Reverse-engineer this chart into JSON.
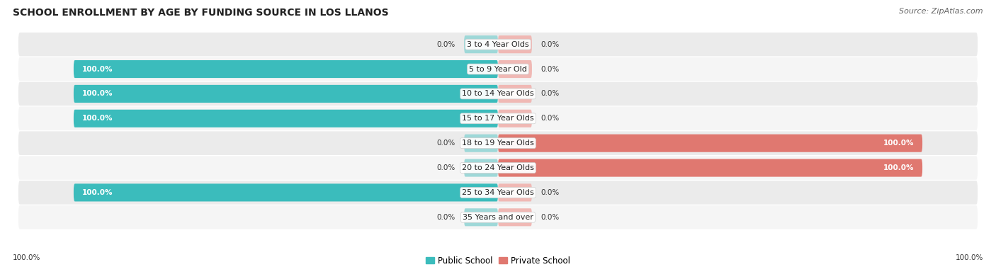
{
  "title": "SCHOOL ENROLLMENT BY AGE BY FUNDING SOURCE IN LOS LLANOS",
  "source": "Source: ZipAtlas.com",
  "categories": [
    "3 to 4 Year Olds",
    "5 to 9 Year Old",
    "10 to 14 Year Olds",
    "15 to 17 Year Olds",
    "18 to 19 Year Olds",
    "20 to 24 Year Olds",
    "25 to 34 Year Olds",
    "35 Years and over"
  ],
  "public_values": [
    0.0,
    100.0,
    100.0,
    100.0,
    0.0,
    0.0,
    100.0,
    0.0
  ],
  "private_values": [
    0.0,
    0.0,
    0.0,
    0.0,
    100.0,
    100.0,
    0.0,
    0.0
  ],
  "public_color": "#3bbcbc",
  "private_color": "#e07870",
  "public_color_light": "#9ed8d8",
  "private_color_light": "#f0b8b4",
  "row_bg_even": "#ebebeb",
  "row_bg_odd": "#f5f5f5",
  "title_fontsize": 10,
  "label_fontsize": 8,
  "value_fontsize": 7.5,
  "legend_fontsize": 8.5,
  "source_fontsize": 8
}
